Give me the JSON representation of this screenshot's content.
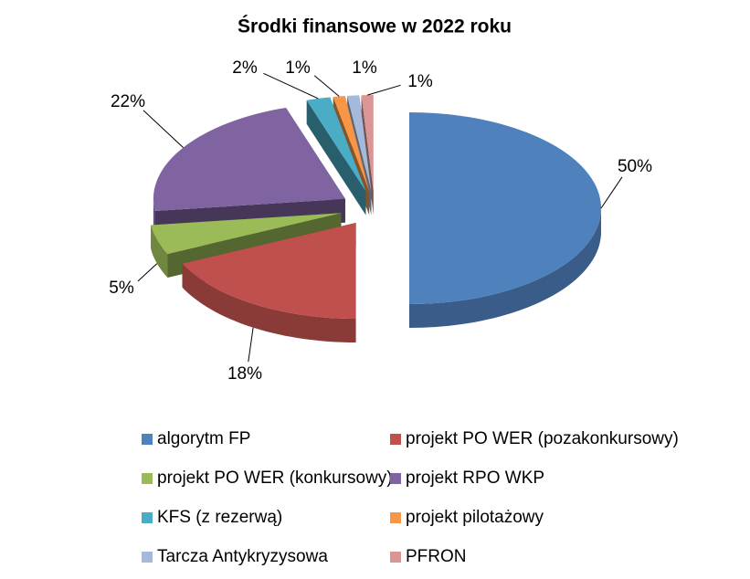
{
  "chart_data": {
    "type": "pie",
    "title": "Środki finansowe w 2022 roku",
    "categories": [
      "algorytm FP",
      "projekt PO WER (pozakonkursowy)",
      "projekt PO WER (konkursowy)",
      "projekt RPO WKP",
      "KFS (z rezerwą)",
      "projekt pilotażowy",
      "Tarcza Antykryzysowa",
      "PFRON"
    ],
    "values": [
      50,
      18,
      5,
      22,
      2,
      1,
      1,
      1
    ],
    "value_labels": [
      "50%",
      "18%",
      "5%",
      "22%",
      "2%",
      "1%",
      "1%",
      "1%"
    ],
    "colors": [
      "#4f81bd",
      "#c0504d",
      "#9bbb59",
      "#8064a2",
      "#4bacc6",
      "#f79646",
      "#a5b9da",
      "#d99694"
    ],
    "legend": "bottom"
  }
}
